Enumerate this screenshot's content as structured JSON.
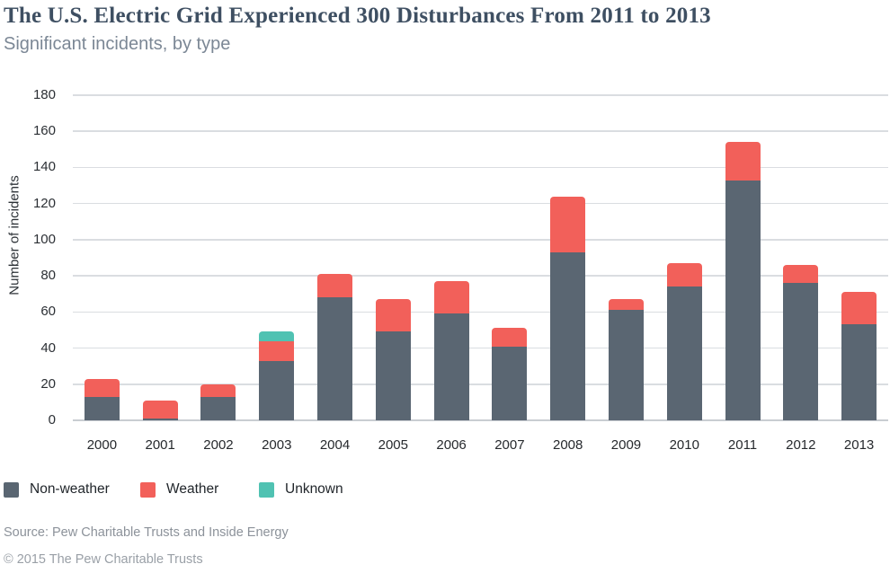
{
  "header": {
    "title": "The U.S. Electric Grid Experienced 300 Disturbances From 2011 to 2013",
    "subtitle": "Significant incidents, by type"
  },
  "chart_data": {
    "type": "bar",
    "stacked": true,
    "title": "The U.S. Electric Grid Experienced 300 Disturbances From 2011 to 2013",
    "subtitle": "Significant incidents, by type",
    "xlabel": "",
    "ylabel": "Number of incidents",
    "categories": [
      "2000",
      "2001",
      "2002",
      "2003",
      "2004",
      "2005",
      "2006",
      "2007",
      "2008",
      "2009",
      "2010",
      "2011",
      "2012",
      "2013"
    ],
    "series": [
      {
        "name": "Non-weather",
        "color": "#5a6672",
        "values": [
          13,
          1,
          13,
          33,
          68,
          49,
          59,
          41,
          93,
          61,
          74,
          133,
          76,
          53
        ]
      },
      {
        "name": "Weather",
        "color": "#f2605a",
        "values": [
          10,
          10,
          7,
          11,
          13,
          18,
          18,
          10,
          31,
          6,
          13,
          21,
          10,
          18
        ]
      },
      {
        "name": "Unknown",
        "color": "#50c2b2",
        "values": [
          0,
          0,
          0,
          5,
          0,
          0,
          0,
          0,
          0,
          0,
          0,
          0,
          0,
          0
        ]
      }
    ],
    "totals": [
      23,
      11,
      20,
      49,
      81,
      67,
      77,
      51,
      124,
      67,
      87,
      154,
      86,
      71
    ],
    "ylim": [
      0,
      180
    ],
    "ytick_step": 20,
    "yticks": [
      0,
      20,
      40,
      60,
      80,
      100,
      120,
      140,
      160,
      180
    ],
    "grid": true,
    "legend_position": "bottom"
  },
  "footer": {
    "source": "Source: Pew Charitable Trusts and Inside Energy",
    "copyright": "© 2015 The Pew Charitable Trusts"
  },
  "colors": {
    "non_weather": "#5a6672",
    "weather": "#f2605a",
    "unknown": "#50c2b2",
    "gridline": "#dadde1",
    "title_text": "#3e4f62",
    "subtitle_text": "#7b8795"
  }
}
